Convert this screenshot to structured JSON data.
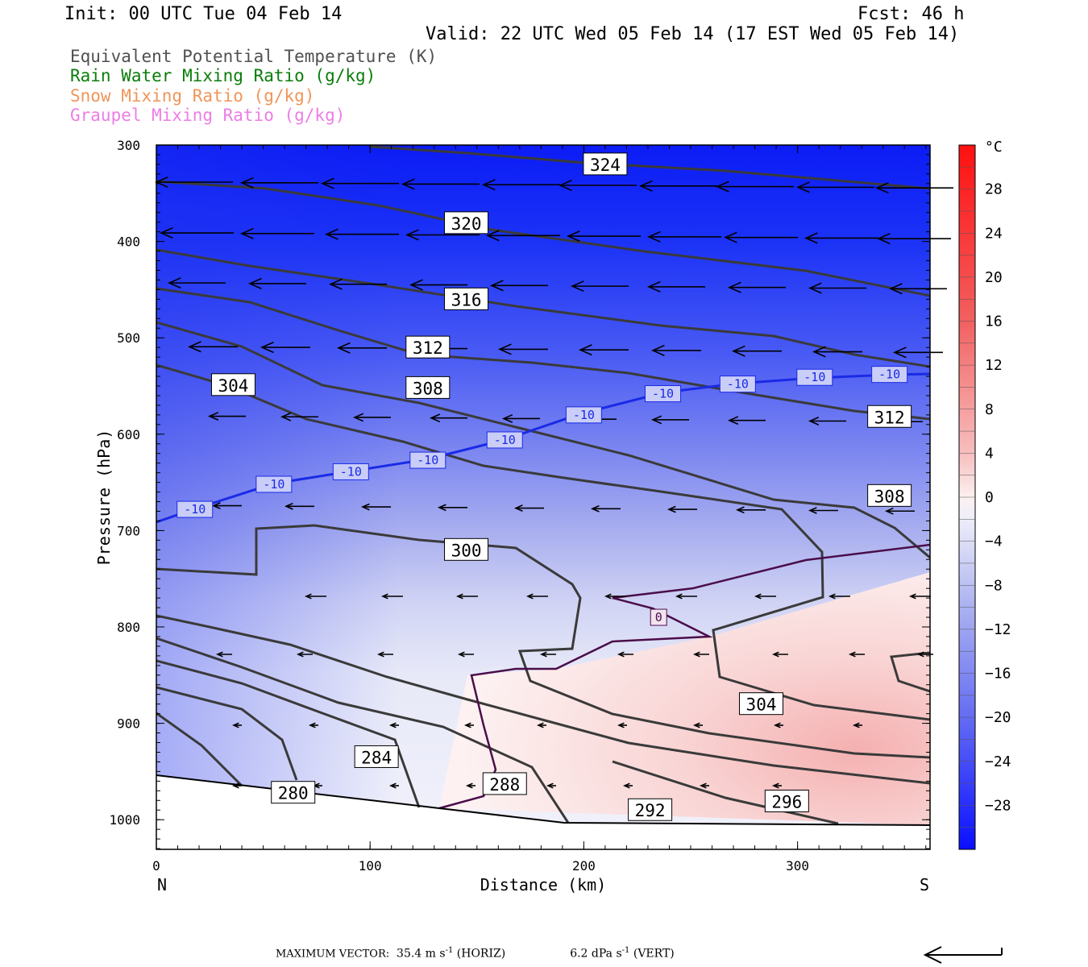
{
  "header": {
    "init": "Init: 00 UTC Tue 04 Feb 14",
    "fcst": "Fcst:   46 h",
    "valid": "Valid: 22 UTC Wed 05 Feb 14 (17 EST Wed 05 Feb 14)"
  },
  "legend": [
    {
      "label": "Equivalent Potential Temperature (K)",
      "color": "#505050"
    },
    {
      "label": "Rain Water Mixing Ratio (g/kg)",
      "color": "#0a7d0a"
    },
    {
      "label": "Snow Mixing Ratio (g/kg)",
      "color": "#f0955a"
    },
    {
      "label": "Graupel Mixing Ratio (g/kg)",
      "color": "#ec7ee6"
    }
  ],
  "footer": {
    "max_vector_label": "MAXIMUM VECTOR:",
    "horiz_value": "35.4 m s",
    "horiz_units": "(HORIZ)",
    "vert_value": "6.2 dPa s",
    "vert_units": "(VERT)",
    "exponent": "-1"
  },
  "chart_data": {
    "type": "contour",
    "xlabel": "Distance (km)",
    "ylabel": "Pressure (hPa)",
    "x_ticks": [
      0,
      100,
      200,
      300
    ],
    "xlim": [
      0,
      362
    ],
    "y_ticks": [
      300,
      400,
      500,
      600,
      700,
      800,
      900,
      1000
    ],
    "ylim": [
      300,
      1030
    ],
    "y_scale": "linear, inverted (pressure increases downward)",
    "x_end_labels": {
      "left": "N",
      "right": "S"
    },
    "colorbar": {
      "units": "°C",
      "tick_labels": [
        "28",
        "24",
        "20",
        "16",
        "12",
        "8",
        "4",
        "0",
        "−4",
        "−8",
        "−12",
        "−16",
        "−20",
        "−24",
        "−28"
      ],
      "range": [
        -32,
        32
      ]
    },
    "theta_e_contour_labels": [
      {
        "label": "324",
        "x": 210,
        "p": 320
      },
      {
        "label": "320",
        "x": 145,
        "p": 381
      },
      {
        "label": "316",
        "x": 145,
        "p": 460
      },
      {
        "label": "312",
        "x": 127,
        "p": 510
      },
      {
        "label": "308",
        "x": 127,
        "p": 552
      },
      {
        "label": "304",
        "x": 36,
        "p": 549
      },
      {
        "label": "312",
        "x": 343,
        "p": 582
      },
      {
        "label": "308",
        "x": 343,
        "p": 664
      },
      {
        "label": "300",
        "x": 145,
        "p": 720
      },
      {
        "label": "304",
        "x": 283,
        "p": 880
      },
      {
        "label": "284",
        "x": 103,
        "p": 935
      },
      {
        "label": "288",
        "x": 163,
        "p": 963
      },
      {
        "label": "280",
        "x": 64,
        "p": 972
      },
      {
        "label": "296",
        "x": 295,
        "p": 981
      },
      {
        "label": "292",
        "x": 231,
        "p": 990
      }
    ],
    "temperature_contour_labels": [
      {
        "label": "-10",
        "x": 18,
        "p": 678
      },
      {
        "label": "-10",
        "x": 55,
        "p": 652
      },
      {
        "label": "-10",
        "x": 91,
        "p": 639
      },
      {
        "label": "-10",
        "x": 127,
        "p": 627
      },
      {
        "label": "-10",
        "x": 163,
        "p": 606
      },
      {
        "label": "-10",
        "x": 200,
        "p": 580
      },
      {
        "label": "-10",
        "x": 237,
        "p": 558
      },
      {
        "label": "-10",
        "x": 272,
        "p": 548
      },
      {
        "label": "-10",
        "x": 308,
        "p": 541
      },
      {
        "label": "-10",
        "x": 343,
        "p": 538
      },
      {
        "label": "0",
        "x": 235,
        "p": 790
      }
    ]
  }
}
